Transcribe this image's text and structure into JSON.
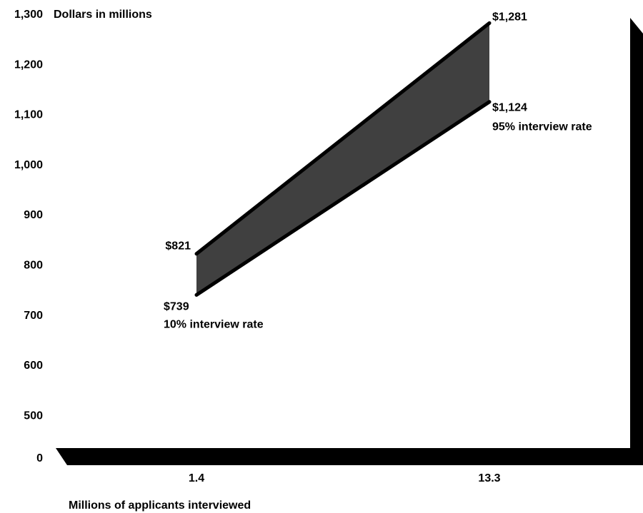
{
  "chart_data": {
    "type": "area",
    "ylabel": "Dollars in millions",
    "xlabel": "Millions of applicants interviewed",
    "y_ticks": [
      "0",
      "500",
      "600",
      "700",
      "800",
      "900",
      "1,000",
      "1,100",
      "1,200",
      "1,300"
    ],
    "x_ticks": [
      "1.4",
      "13.3"
    ],
    "x": [
      1.4,
      13.3
    ],
    "series": [
      {
        "values": [
          821,
          1281
        ],
        "value_labels": [
          "$821",
          "$1,281"
        ]
      },
      {
        "values": [
          739,
          1124
        ],
        "value_labels": [
          "$739",
          "$1,124"
        ]
      }
    ],
    "annotations": {
      "low": "10% interview rate",
      "high": "95% interview rate"
    },
    "ylim": [
      0,
      1300
    ],
    "axis_break_below": 500,
    "band_color": "#404040",
    "line_color": "#000000",
    "floor_color": "#000000"
  }
}
